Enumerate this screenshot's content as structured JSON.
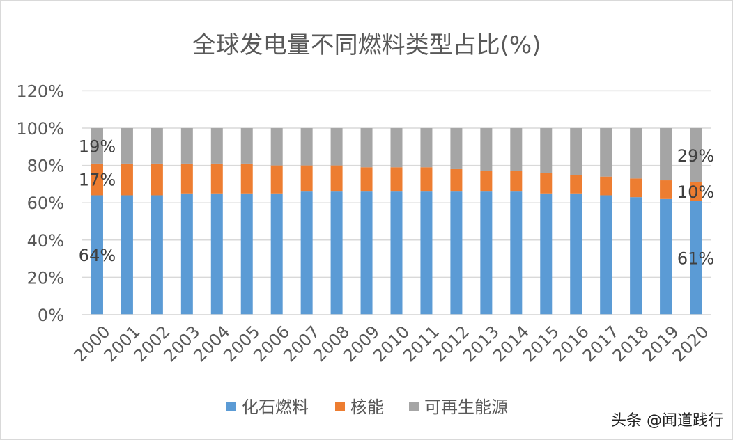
{
  "chart_data": {
    "type": "bar",
    "stacked": true,
    "title": "全球发电量不同燃料类型占比(%)",
    "xlabel": "",
    "ylabel": "",
    "ylim": [
      0,
      120
    ],
    "yticks": [
      "0%",
      "20%",
      "40%",
      "60%",
      "80%",
      "100%",
      "120%"
    ],
    "grid": true,
    "legend_position": "bottom",
    "categories": [
      "2000",
      "2001",
      "2002",
      "2003",
      "2004",
      "2005",
      "2006",
      "2007",
      "2008",
      "2009",
      "2010",
      "2011",
      "2012",
      "2013",
      "2014",
      "2015",
      "2016",
      "2017",
      "2018",
      "2019",
      "2020"
    ],
    "series": [
      {
        "name": "化石燃料",
        "color": "#5B9BD5",
        "values": [
          64,
          64,
          64,
          65,
          65,
          65,
          65,
          66,
          66,
          66,
          66,
          66,
          66,
          66,
          66,
          65,
          65,
          64,
          63,
          62,
          61
        ]
      },
      {
        "name": "核能",
        "color": "#ED7D31",
        "values": [
          17,
          17,
          17,
          16,
          16,
          16,
          15,
          14,
          14,
          13,
          13,
          13,
          12,
          11,
          11,
          11,
          10,
          10,
          10,
          10,
          10
        ]
      },
      {
        "name": "可再生能源",
        "color": "#A5A5A5",
        "values": [
          19,
          19,
          19,
          19,
          19,
          19,
          20,
          20,
          20,
          21,
          21,
          21,
          22,
          23,
          23,
          24,
          25,
          26,
          27,
          28,
          29
        ]
      }
    ],
    "data_labels": [
      {
        "category": "2000",
        "series": "化石燃料",
        "text": "64%"
      },
      {
        "category": "2000",
        "series": "核能",
        "text": "17%"
      },
      {
        "category": "2000",
        "series": "可再生能源",
        "text": "19%"
      },
      {
        "category": "2020",
        "series": "化石燃料",
        "text": "61%"
      },
      {
        "category": "2020",
        "series": "核能",
        "text": "10%"
      },
      {
        "category": "2020",
        "series": "可再生能源",
        "text": "29%"
      }
    ]
  },
  "watermark": "头条 @闻道践行"
}
